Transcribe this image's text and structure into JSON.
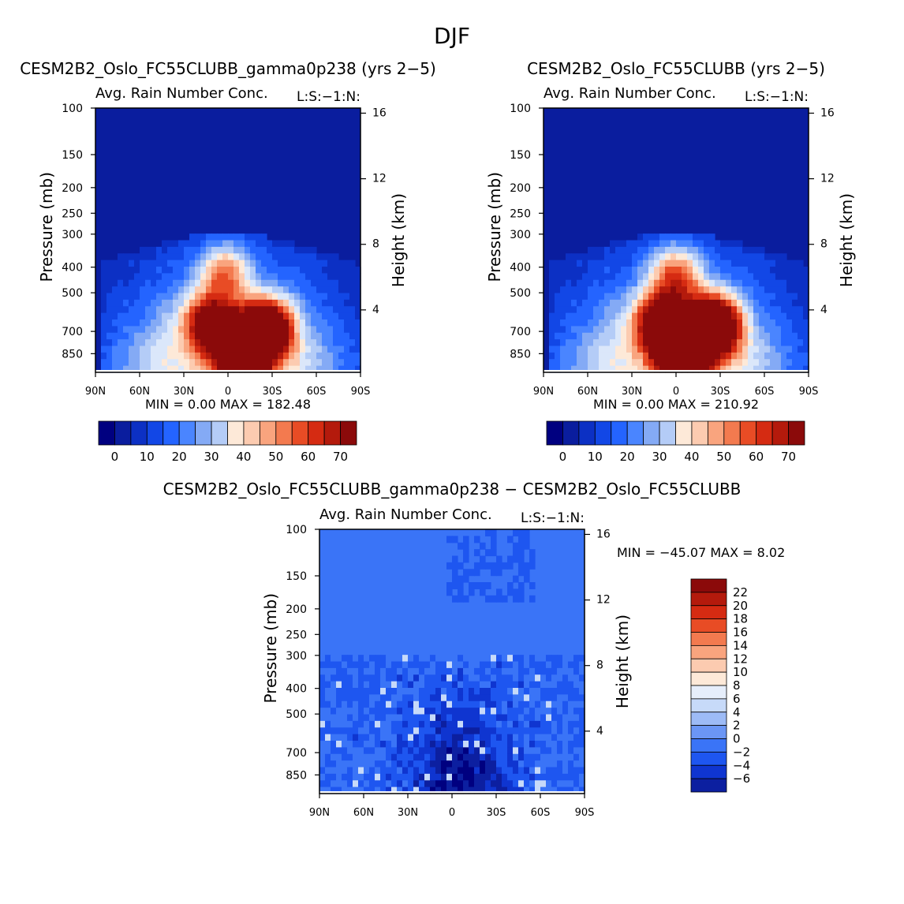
{
  "figure_title": "DJF",
  "colors": {
    "background": "#ffffff",
    "field_scale": [
      "#000080",
      "#0a1d9e",
      "#0c30c4",
      "#1247e6",
      "#2464ff",
      "#4a85ff",
      "#84aaf5",
      "#b4ccf7",
      "#dbe7fa",
      "#fde9d8",
      "#fccbb0",
      "#f9a47e",
      "#f37a4f",
      "#e84c25",
      "#d52b12",
      "#b41a0c",
      "#8b0a0a"
    ],
    "diff_scale": [
      "#000080",
      "#0c1fa0",
      "#0f35d0",
      "#1e56f0",
      "#3a74f7",
      "#6b96f5",
      "#9dbbf6",
      "#c7daf9",
      "#e6eefb",
      "#fde9d8",
      "#fccbb0",
      "#f9a47e",
      "#f37a4f",
      "#e84c25",
      "#d52b12",
      "#b41a0c",
      "#8b0a0a"
    ]
  },
  "chart_data": [
    {
      "type": "heatmap",
      "title": "CESM2B2_Oslo_FC55CLUBB_gamma0p238 (yrs 2-5)",
      "subtitle_left": "Avg. Rain Number Conc.",
      "subtitle_right": "L:S:-1:N:",
      "xlabel": "",
      "ylabel": "Pressure (mb)",
      "ylabel_right": "Height (km)",
      "x_tick_labels": [
        "90N",
        "60N",
        "30N",
        "0",
        "30S",
        "60S",
        "90S"
      ],
      "x_ticks": [
        -90,
        -60,
        -30,
        0,
        30,
        60,
        90
      ],
      "xlim": [
        -90,
        90
      ],
      "y_tick_labels": [
        "100",
        "150",
        "200",
        "250",
        "300",
        "400",
        "500",
        "700",
        "850"
      ],
      "y_ticks": [
        100,
        150,
        200,
        250,
        300,
        400,
        500,
        700,
        850
      ],
      "ylim": [
        100,
        1000
      ],
      "y_scale": "log",
      "right_tick_labels": [
        "16",
        "12",
        "8",
        "4"
      ],
      "right_ticks": [
        16,
        12,
        8,
        4
      ],
      "stats_label": "MIN =    0.00   MAX = 182.48",
      "stats": {
        "min": 0.0,
        "max": 182.48
      },
      "colorbar": {
        "orientation": "horizontal",
        "levels": [
          0,
          5,
          10,
          15,
          20,
          25,
          30,
          35,
          40,
          45,
          50,
          55,
          60,
          65,
          70
        ],
        "labels": [
          "0",
          "10",
          "20",
          "30",
          "40",
          "50",
          "60",
          "70"
        ]
      },
      "field": {
        "cloud_top_mb": 300,
        "rain_shaft_centers": [
          [
            -12,
            650,
            65
          ],
          [
            25,
            680,
            90
          ],
          [
            -2,
            420,
            42
          ],
          [
            10,
            900,
            80
          ]
        ]
      }
    },
    {
      "type": "heatmap",
      "title": "CESM2B2_Oslo_FC55CLUBB (yrs 2-5)",
      "subtitle_left": "Avg. Rain Number Conc.",
      "subtitle_right": "L:S:-1:N:",
      "xlabel": "",
      "ylabel": "Pressure (mb)",
      "ylabel_right": "Height (km)",
      "x_tick_labels": [
        "90N",
        "60N",
        "30N",
        "0",
        "30S",
        "60S",
        "90S"
      ],
      "x_ticks": [
        -90,
        -60,
        -30,
        0,
        30,
        60,
        90
      ],
      "xlim": [
        -90,
        90
      ],
      "y_tick_labels": [
        "100",
        "150",
        "200",
        "250",
        "300",
        "400",
        "500",
        "700",
        "850"
      ],
      "y_ticks": [
        100,
        150,
        200,
        250,
        300,
        400,
        500,
        700,
        850
      ],
      "ylim": [
        100,
        1000
      ],
      "y_scale": "log",
      "right_tick_labels": [
        "16",
        "12",
        "8",
        "4"
      ],
      "right_ticks": [
        16,
        12,
        8,
        4
      ],
      "stats_label": "MIN =    0.00   MAX = 210.92",
      "stats": {
        "min": 0.0,
        "max": 210.92
      },
      "colorbar": {
        "orientation": "horizontal",
        "levels": [
          0,
          5,
          10,
          15,
          20,
          25,
          30,
          35,
          40,
          45,
          50,
          55,
          60,
          65,
          70
        ],
        "labels": [
          "0",
          "10",
          "20",
          "30",
          "40",
          "50",
          "60",
          "70"
        ]
      },
      "field": {
        "cloud_top_mb": 300,
        "rain_shaft_centers": [
          [
            -10,
            650,
            75
          ],
          [
            25,
            660,
            100
          ],
          [
            0,
            430,
            48
          ],
          [
            5,
            900,
            90
          ]
        ]
      }
    },
    {
      "type": "heatmap",
      "title": "CESM2B2_Oslo_FC55CLUBB_gamma0p238 - CESM2B2_Oslo_FC55CLUBB",
      "subtitle_left": "Avg. Rain Number Conc.",
      "subtitle_right": "L:S:-1:N:",
      "xlabel": "",
      "ylabel": "Pressure (mb)",
      "ylabel_right": "Height (km)",
      "x_tick_labels": [
        "90N",
        "60N",
        "30N",
        "0",
        "30S",
        "60S",
        "90S"
      ],
      "x_ticks": [
        -90,
        -60,
        -30,
        0,
        30,
        60,
        90
      ],
      "xlim": [
        -90,
        90
      ],
      "y_tick_labels": [
        "100",
        "150",
        "200",
        "250",
        "300",
        "400",
        "500",
        "700",
        "850"
      ],
      "y_ticks": [
        100,
        150,
        200,
        250,
        300,
        400,
        500,
        700,
        850
      ],
      "ylim": [
        100,
        1000
      ],
      "y_scale": "log",
      "right_tick_labels": [
        "16",
        "12",
        "8",
        "4"
      ],
      "right_ticks": [
        16,
        12,
        8,
        4
      ],
      "stats_label": "MIN = -45.07   MAX =    8.02",
      "stats": {
        "min": -45.07,
        "max": 8.02
      },
      "colorbar": {
        "orientation": "vertical",
        "levels": [
          -6,
          -4,
          -2,
          0,
          2,
          4,
          6,
          8,
          10,
          12,
          14,
          16,
          18,
          20,
          22
        ],
        "labels": [
          "-6",
          "-4",
          "-2",
          "0",
          "2",
          "4",
          "6",
          "8",
          "10",
          "12",
          "14",
          "16",
          "18",
          "20",
          "22"
        ]
      }
    }
  ]
}
